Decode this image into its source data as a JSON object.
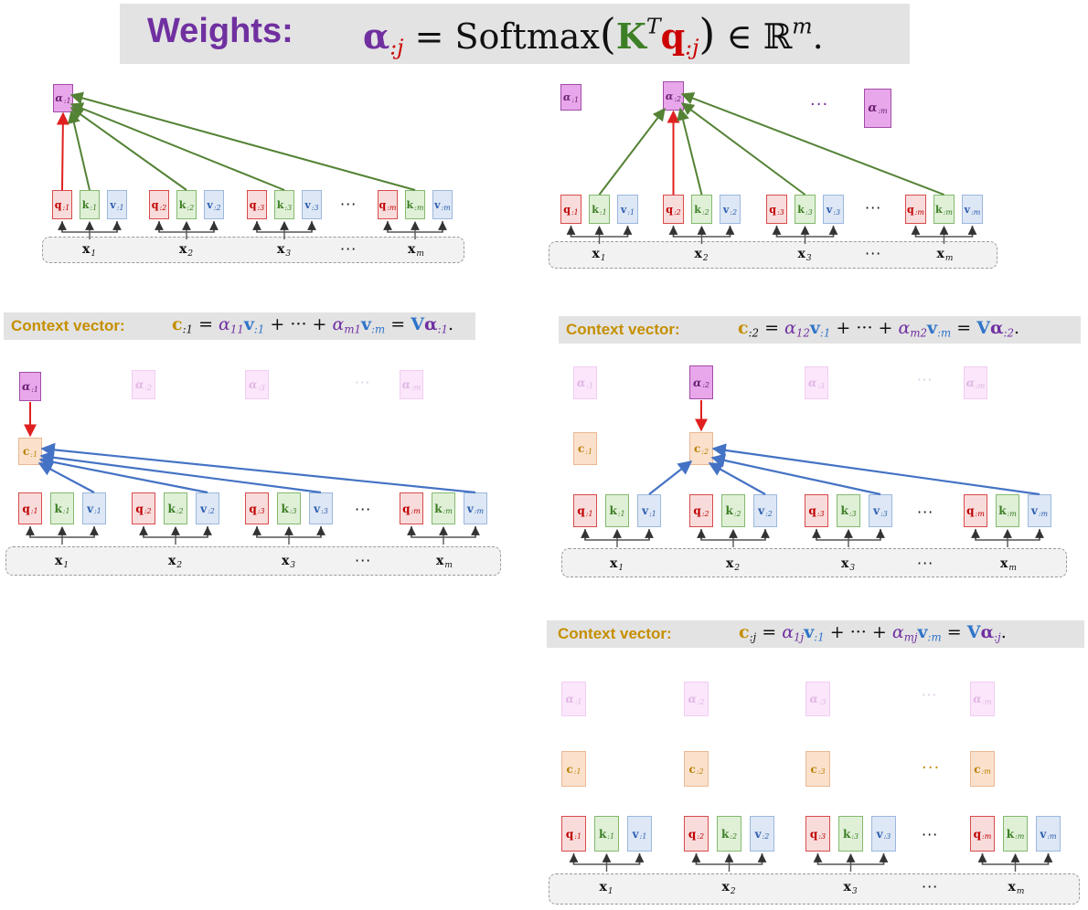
{
  "weights_heading": {
    "label": "Weights:",
    "alpha": "α",
    "sub_j": ":j",
    "equals": "=",
    "softmax": "Softmax",
    "K": "K",
    "T": "T",
    "q": "q",
    "in": "∈",
    "R": "ℝ",
    "m": "m",
    "period": "."
  },
  "context_heading": {
    "label": "Context vector:",
    "c": "c",
    "plus": "+ ··· +",
    "equals": "=",
    "V": "V",
    "period": "."
  },
  "context_variants": [
    {
      "c_sub": ":1",
      "a_first": "11",
      "a_last": "m1",
      "alpha_sub": ":1"
    },
    {
      "c_sub": ":2",
      "a_first": "12",
      "a_last": "m2",
      "alpha_sub": ":2"
    },
    {
      "c_sub": ":j",
      "a_first": "1j",
      "a_last": "mj",
      "alpha_sub": ":j"
    }
  ],
  "symbols": {
    "q": "q",
    "k": "k",
    "v": "v",
    "alpha": "α",
    "c": "c",
    "x": "x",
    "alpha_text": "α",
    "dots": "···"
  },
  "subscripts": {
    "s1": ":1",
    "s2": ":2",
    "s3": ":3",
    "sm": ":m",
    "x1": "1",
    "x2": "2",
    "x3": "3",
    "xm": "m"
  },
  "colors": {
    "query": "#cc0000",
    "key": "#3d7f25",
    "value": "#2e74c9",
    "weight": "#7030a0",
    "context": "#c58f00",
    "green_arrow": "#548235",
    "red_arrow": "#e02020",
    "blue_arrow": "#4472c4"
  }
}
